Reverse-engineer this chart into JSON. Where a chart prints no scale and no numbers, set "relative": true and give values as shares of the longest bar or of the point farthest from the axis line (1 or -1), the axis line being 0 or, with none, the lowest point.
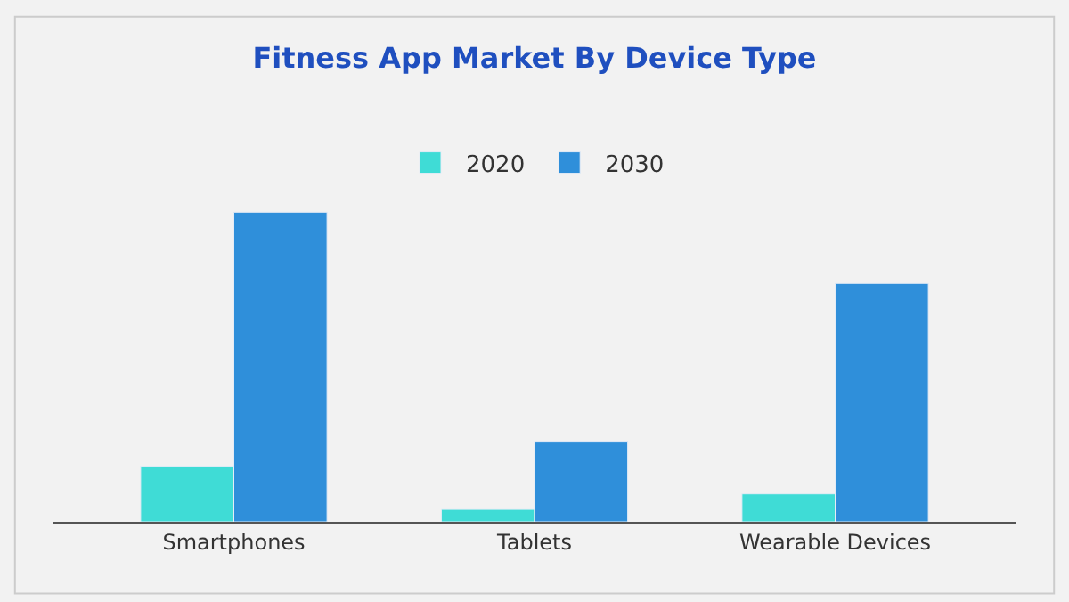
{
  "chart_data": {
    "type": "bar",
    "title": "Fitness App Market By Device Type",
    "categories": [
      "Smartphones",
      "Tablets",
      "Wearable Devices"
    ],
    "relative": true,
    "legend": "top",
    "series": [
      {
        "name": "2020",
        "color": "#3fdcd6",
        "values": [
          0.18,
          0.04,
          0.09
        ]
      },
      {
        "name": "2030",
        "color": "#2f8fda",
        "values": [
          1,
          0.26,
          0.77
        ]
      }
    ]
  }
}
